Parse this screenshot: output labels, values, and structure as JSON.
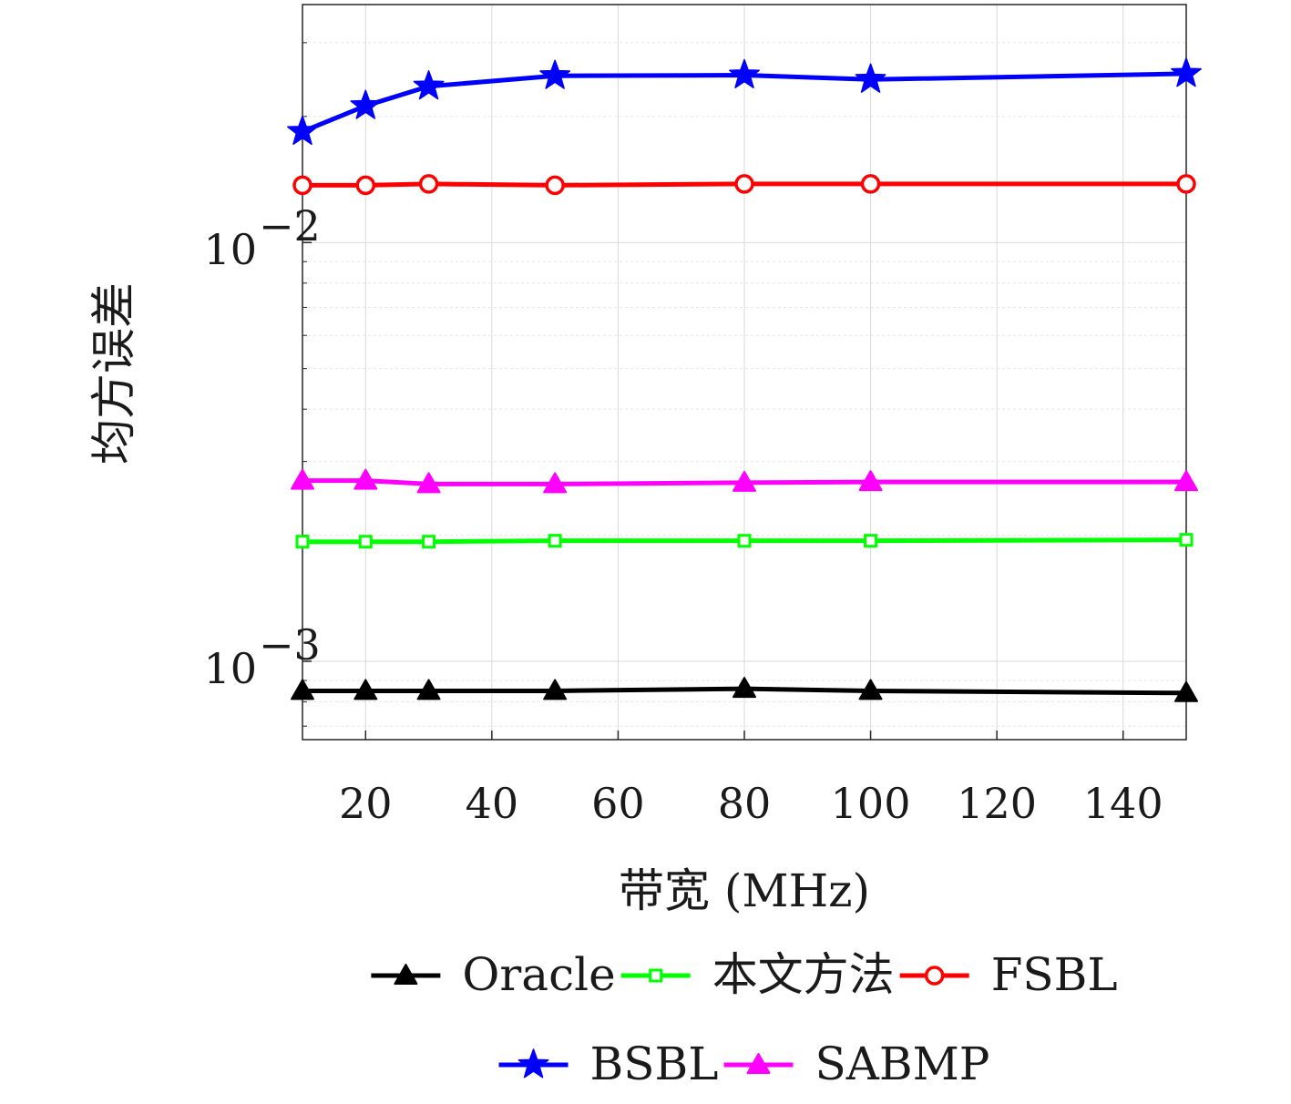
{
  "chart_data": {
    "type": "line",
    "title": "",
    "xlabel": "带宽 (MHz)",
    "ylabel": "均方误差",
    "xlim": [
      10,
      150
    ],
    "ylim": [
      0.00065,
      0.037
    ],
    "yscale": "log",
    "grid": true,
    "legend_position": "bottom",
    "x": [
      10,
      20,
      30,
      50,
      80,
      100,
      150
    ],
    "x_ticks": [
      20,
      40,
      60,
      80,
      100,
      120,
      140
    ],
    "y_ticks": [
      {
        "value": 0.01,
        "base": "10",
        "exp": "−2"
      },
      {
        "value": 0.001,
        "base": "10",
        "exp": "−3"
      }
    ],
    "series": [
      {
        "name": "Oracle",
        "color": "#000000",
        "marker": "triangle",
        "values": [
          0.00085,
          0.00085,
          0.00085,
          0.00085,
          0.00086,
          0.00085,
          0.00084
        ]
      },
      {
        "name": "本文方法",
        "color": "#00ff00",
        "marker": "square",
        "values": [
          0.00193,
          0.00193,
          0.00193,
          0.00194,
          0.00194,
          0.00194,
          0.00195
        ]
      },
      {
        "name": "FSBL",
        "color": "#ff0000",
        "marker": "circle",
        "values": [
          0.0137,
          0.0137,
          0.0138,
          0.0137,
          0.0138,
          0.0138,
          0.0138
        ]
      },
      {
        "name": "BSBL",
        "color": "#0000ff",
        "marker": "star",
        "values": [
          0.0184,
          0.0212,
          0.0236,
          0.025,
          0.0251,
          0.0245,
          0.0253
        ]
      },
      {
        "name": "SABMP",
        "color": "#ff00ff",
        "marker": "triangle",
        "values": [
          0.0027,
          0.0027,
          0.00265,
          0.00265,
          0.00267,
          0.00268,
          0.00268
        ]
      }
    ]
  }
}
